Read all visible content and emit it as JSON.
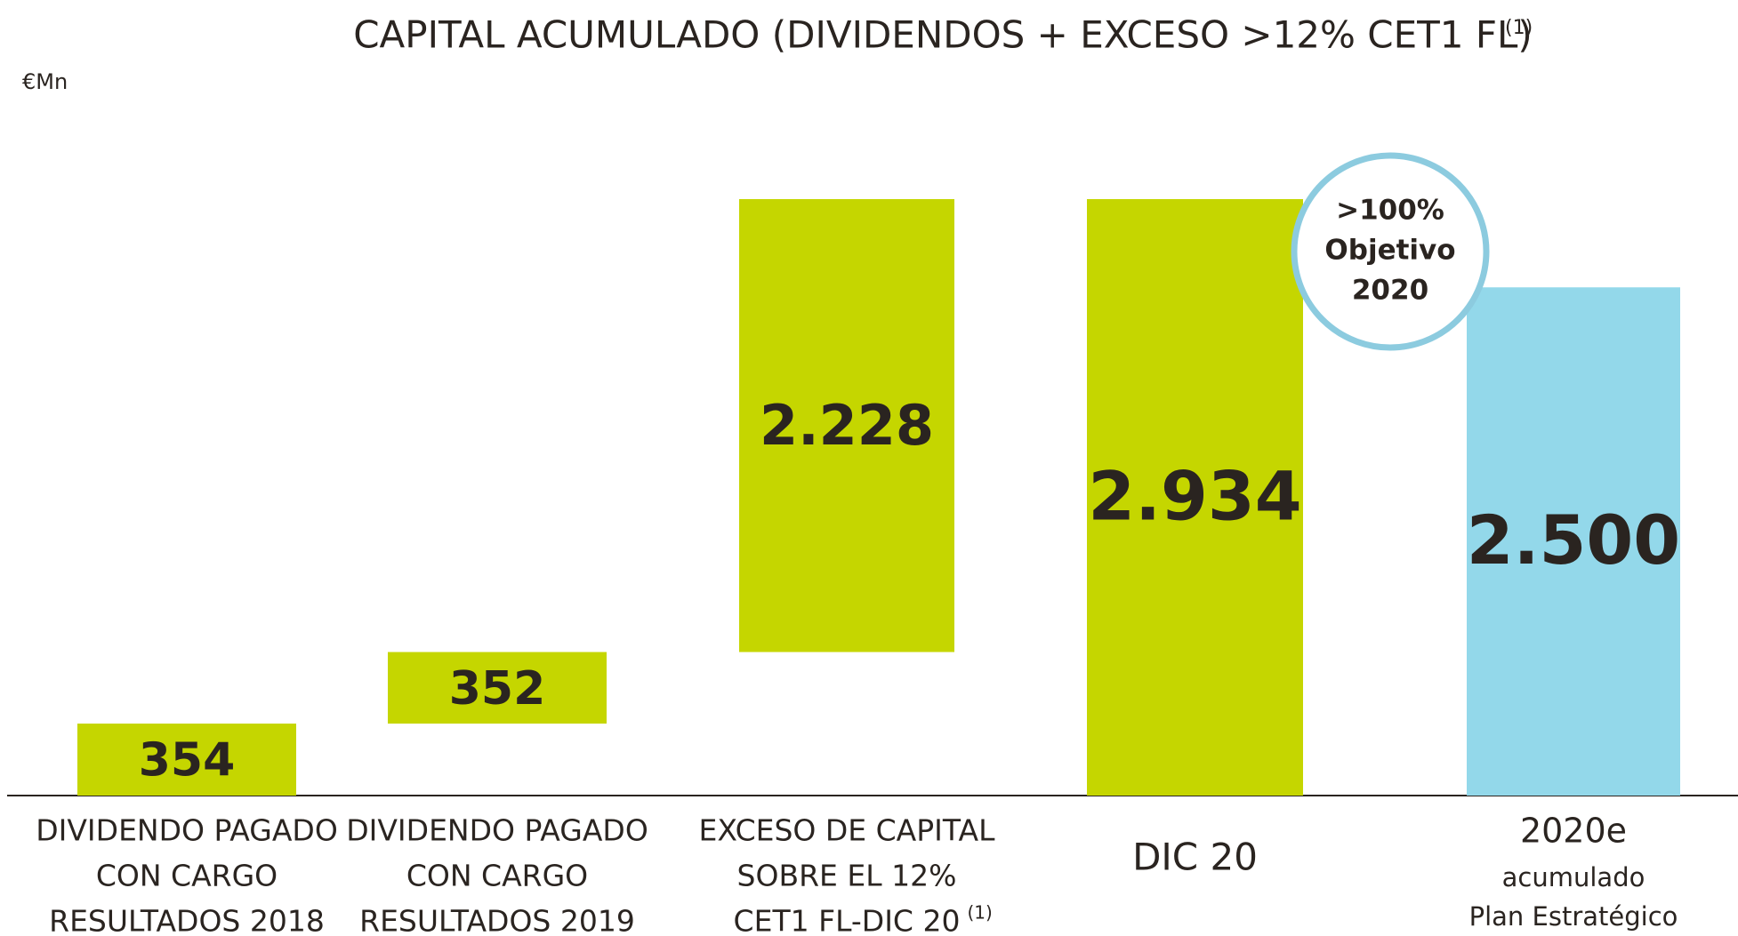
{
  "chart_data": {
    "type": "waterfall",
    "title": "CAPITAL ACUMULADO  (DIVIDENDOS + EXCESO >12% CET1 FL)",
    "note_mark": "(1)",
    "unit": "€Mn",
    "categories": [
      [
        "DIVIDENDO PAGADO",
        "CON CARGO",
        "RESULTADOS 2018"
      ],
      [
        "DIVIDENDO PAGADO",
        "CON CARGO",
        "RESULTADOS 2019"
      ],
      [
        "EXCESO DE CAPITAL",
        "SOBRE EL 12%",
        "CET1 FL-DIC 20"
      ],
      [
        "DIC 20"
      ],
      [
        "2020e",
        "acumulado",
        "Plan Estratégico"
      ]
    ],
    "values": [
      354,
      352,
      2228,
      2934,
      2500
    ],
    "value_labels": [
      "354",
      "352",
      "2.228",
      "2.934",
      "2.500"
    ],
    "measure": [
      "relative",
      "relative",
      "relative",
      "total",
      "total"
    ],
    "colors": [
      "#c5d600",
      "#c5d600",
      "#c5d600",
      "#c5d600",
      "#93d8ea"
    ],
    "annotation": [
      ">100%",
      "Objetivo",
      "2020"
    ]
  }
}
